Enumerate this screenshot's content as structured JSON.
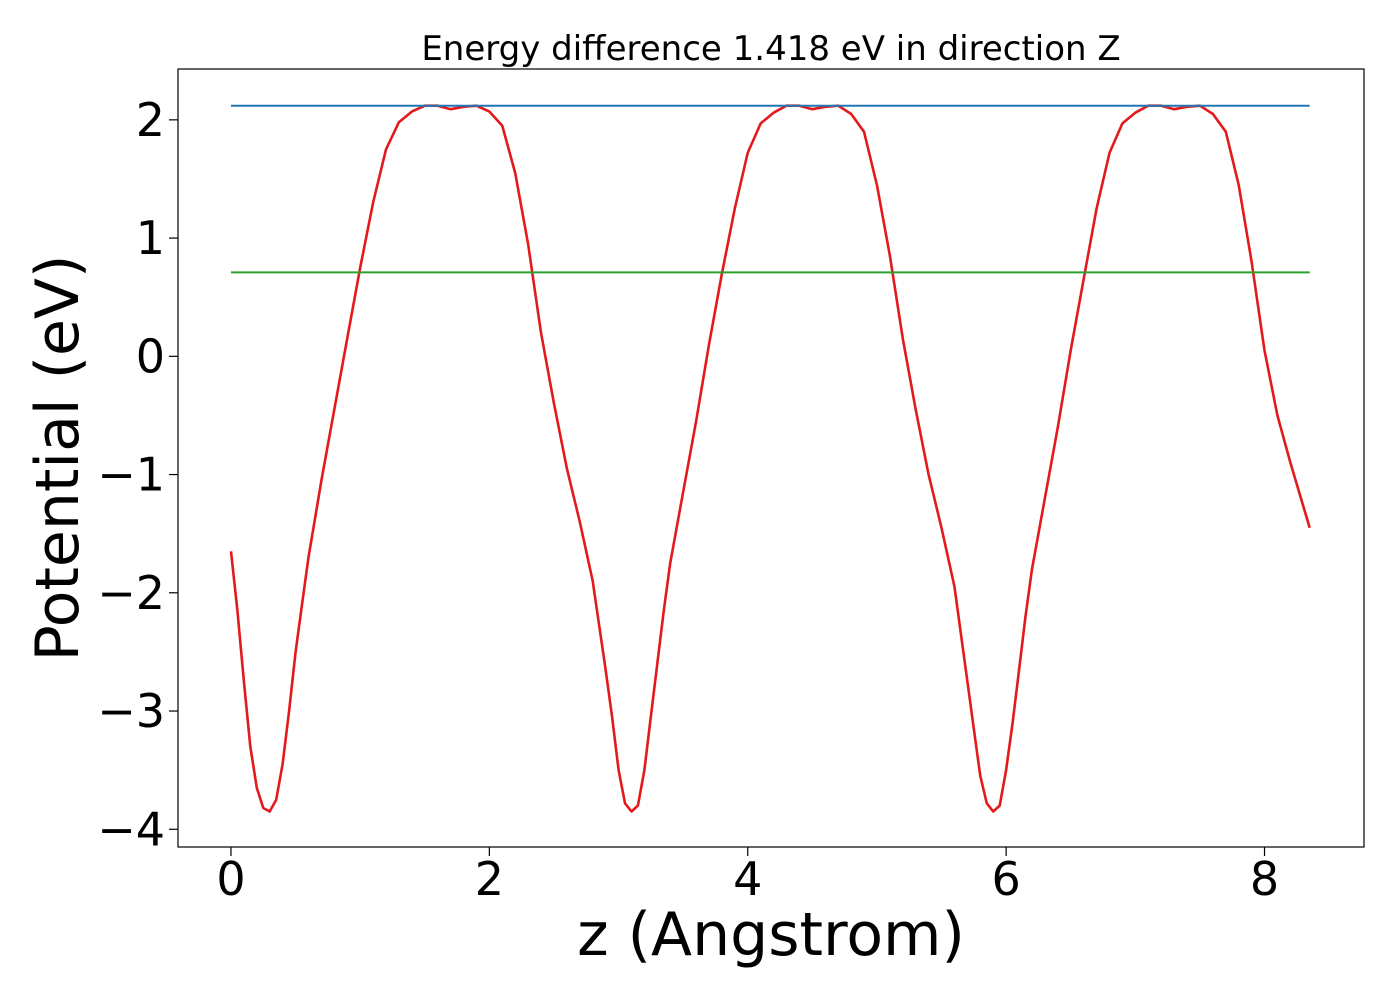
{
  "chart_data": {
    "type": "line",
    "title": "Energy difference 1.418 eV in direction Z",
    "xlabel": "z (Angstrom)",
    "ylabel": "Potential (eV)",
    "xlim": [
      -0.41,
      8.77
    ],
    "ylim": [
      -4.15,
      2.43
    ],
    "xticks": [
      0,
      2,
      4,
      6,
      8
    ],
    "yticks": [
      -4,
      -3,
      -2,
      -1,
      0,
      1,
      2
    ],
    "x_tick_labels": [
      "0",
      "2",
      "4",
      "6",
      "8"
    ],
    "y_tick_labels": [
      "−4",
      "−3",
      "−2",
      "−1",
      "0",
      "1",
      "2"
    ],
    "grid": false,
    "legend": "none",
    "series": [
      {
        "color": "#e31a1c",
        "x": [
          0,
          0.05,
          0.1,
          0.15,
          0.2,
          0.25,
          0.3,
          0.35,
          0.4,
          0.45,
          0.5,
          0.55,
          0.6,
          0.7,
          0.8,
          0.9,
          1.0,
          1.1,
          1.2,
          1.3,
          1.4,
          1.5,
          1.6,
          1.7,
          1.8,
          1.9,
          2.0,
          2.1,
          2.2,
          2.3,
          2.4,
          2.5,
          2.6,
          2.7,
          2.8,
          2.9,
          2.95,
          3.0,
          3.05,
          3.1,
          3.15,
          3.2,
          3.25,
          3.3,
          3.35,
          3.4,
          3.5,
          3.6,
          3.7,
          3.8,
          3.9,
          4.0,
          4.1,
          4.2,
          4.3,
          4.4,
          4.5,
          4.6,
          4.7,
          4.8,
          4.9,
          5.0,
          5.1,
          5.2,
          5.3,
          5.4,
          5.5,
          5.6,
          5.7,
          5.75,
          5.8,
          5.85,
          5.9,
          5.95,
          6.0,
          6.05,
          6.1,
          6.15,
          6.2,
          6.3,
          6.4,
          6.5,
          6.6,
          6.7,
          6.8,
          6.9,
          7.0,
          7.1,
          7.2,
          7.3,
          7.4,
          7.5,
          7.6,
          7.7,
          7.8,
          7.9,
          8.0,
          8.1,
          8.2,
          8.35
        ],
        "y": [
          -1.65,
          -2.15,
          -2.75,
          -3.3,
          -3.65,
          -3.82,
          -3.85,
          -3.75,
          -3.45,
          -3.0,
          -2.5,
          -2.1,
          -1.7,
          -1.05,
          -0.45,
          0.15,
          0.75,
          1.3,
          1.75,
          1.98,
          2.07,
          2.12,
          2.12,
          2.09,
          2.11,
          2.12,
          2.07,
          1.95,
          1.55,
          0.95,
          0.2,
          -0.4,
          -0.95,
          -1.4,
          -1.9,
          -2.65,
          -3.05,
          -3.5,
          -3.78,
          -3.85,
          -3.8,
          -3.5,
          -3.05,
          -2.6,
          -2.15,
          -1.75,
          -1.15,
          -0.55,
          0.1,
          0.7,
          1.25,
          1.72,
          1.97,
          2.06,
          2.12,
          2.12,
          2.09,
          2.11,
          2.12,
          2.05,
          1.9,
          1.45,
          0.85,
          0.15,
          -0.45,
          -1.0,
          -1.45,
          -1.95,
          -2.75,
          -3.15,
          -3.55,
          -3.78,
          -3.85,
          -3.8,
          -3.5,
          -3.1,
          -2.65,
          -2.2,
          -1.8,
          -1.2,
          -0.6,
          0.05,
          0.65,
          1.25,
          1.72,
          1.97,
          2.06,
          2.12,
          2.12,
          2.09,
          2.11,
          2.12,
          2.05,
          1.9,
          1.45,
          0.8,
          0.05,
          -0.5,
          -0.9,
          -1.45
        ]
      },
      {
        "color": "#1f77b4",
        "x": [
          0,
          8.35
        ],
        "y": [
          2.12,
          2.12
        ]
      },
      {
        "color": "#2ca02c",
        "x": [
          0,
          8.35
        ],
        "y": [
          0.71,
          0.71
        ]
      }
    ]
  }
}
